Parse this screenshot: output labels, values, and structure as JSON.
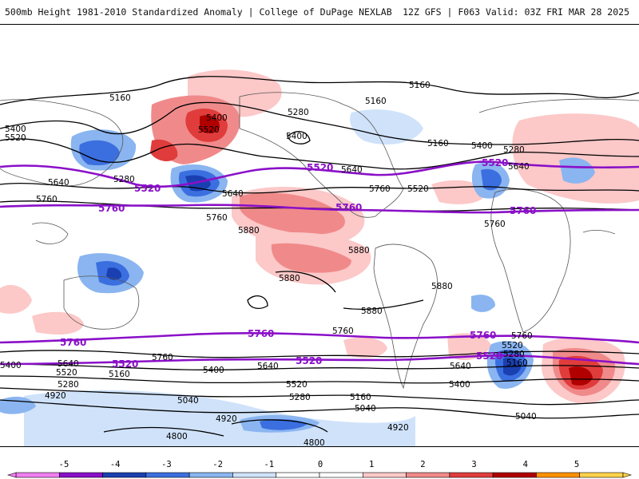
{
  "header": {
    "left": "500mb Height 1981-2010 Standardized Anomaly | College of DuPage NEXLAB",
    "right": "12Z GFS | F063 Valid: 03Z FRI MAR 28 2025"
  },
  "height_labels": [
    "5160",
    "5400",
    "5520",
    "5280",
    "5640",
    "5760",
    "5880",
    "5040",
    "4920",
    "4800"
  ],
  "colorbar": {
    "ticks": [
      "-5",
      "-4",
      "-3",
      "-2",
      "-1",
      "0",
      "1",
      "2",
      "3",
      "4",
      "5"
    ],
    "colors": [
      "#f07ef0",
      "#8a10c8",
      "#1a3fb0",
      "#3b6fe0",
      "#8ab5f0",
      "#cfe2fa",
      "#ffffff",
      "#ffffff",
      "#fcc8c8",
      "#f08a8a",
      "#e03c3c",
      "#b00000",
      "#ff9000",
      "#ffd24a"
    ]
  }
}
